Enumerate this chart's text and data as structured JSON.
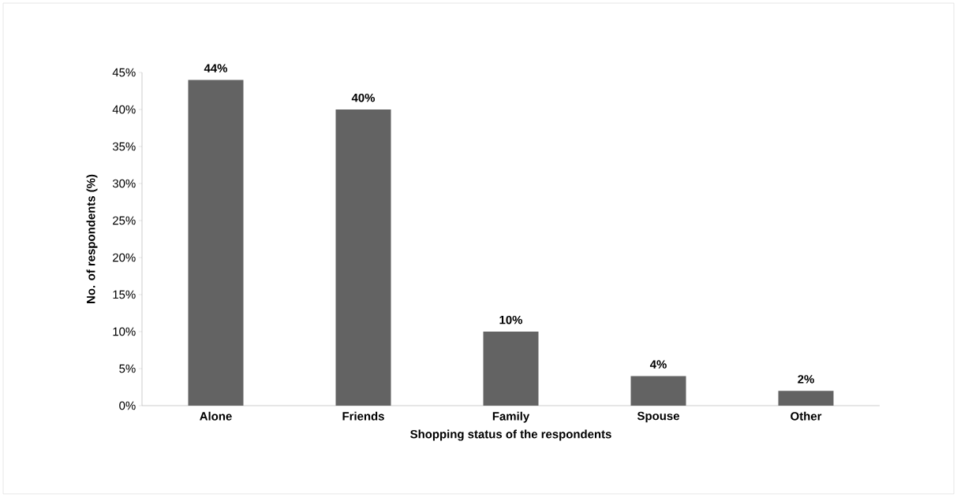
{
  "chart_data": {
    "type": "bar",
    "xlabel": "Shopping status of the respondents",
    "ylabel": "No. of respondents (%)",
    "categories": [
      "Alone",
      "Friends",
      "Family",
      "Spouse",
      "Other"
    ],
    "values": [
      44,
      40,
      10,
      4,
      2
    ],
    "value_labels": [
      "44%",
      "40%",
      "10%",
      "4%",
      "2%"
    ],
    "color": "#636363",
    "ylim": [
      0,
      45
    ],
    "yticks": [
      {
        "value": 0,
        "label": "0%"
      },
      {
        "value": 5,
        "label": "5%"
      },
      {
        "value": 10,
        "label": "10%"
      },
      {
        "value": 15,
        "label": "15%"
      },
      {
        "value": 20,
        "label": "20%"
      },
      {
        "value": 25,
        "label": "25%"
      },
      {
        "value": 30,
        "label": "30%"
      },
      {
        "value": 35,
        "label": "35%"
      },
      {
        "value": 40,
        "label": "40%"
      },
      {
        "value": 45,
        "label": "45%"
      }
    ],
    "grid": false
  }
}
